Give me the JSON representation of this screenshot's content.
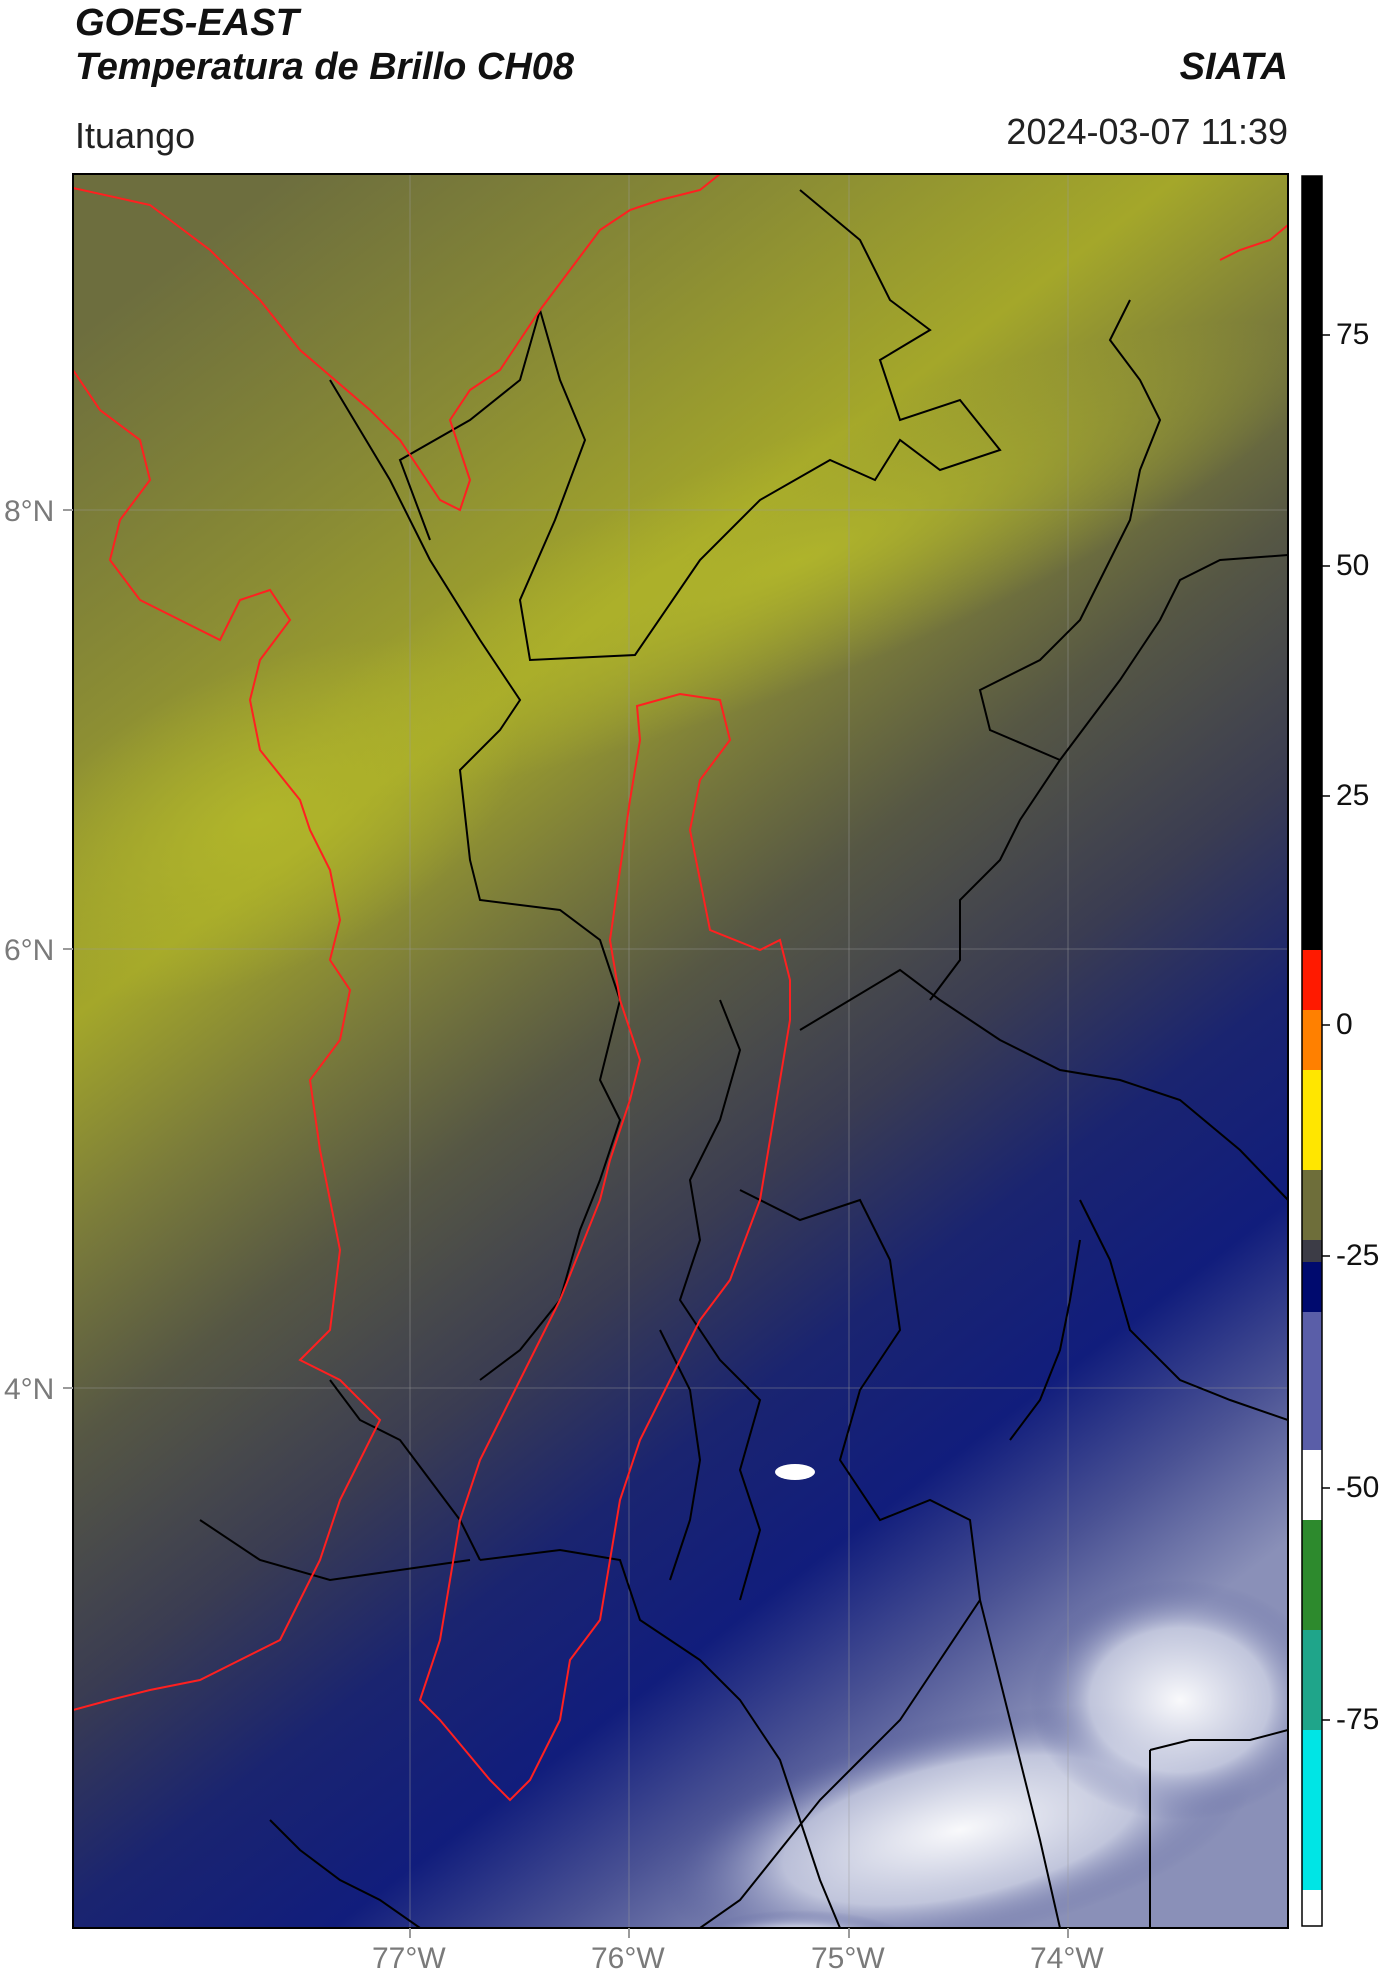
{
  "header": {
    "title_line1": "GOES-EAST",
    "title_line2": "Temperatura de Brillo CH08",
    "agency": "SIATA",
    "region": "Ituango",
    "datetime": "2024-03-07 11:39"
  },
  "axes": {
    "lat_ticks": [
      "8°N",
      "6°N",
      "4°N"
    ],
    "lon_ticks": [
      "77°W",
      "76°W",
      "75°W",
      "74°W"
    ]
  },
  "colorbar": {
    "ticks": [
      "75",
      "50",
      "25",
      "0",
      "-25",
      "-50",
      "-75"
    ],
    "colors": [
      "#ffffff",
      "#00e5e5",
      "#1fa58a",
      "#2d8a2d",
      "#ffffff",
      "#3a3d8c",
      "#000a6e",
      "#3c3c46",
      "#6e6e3a",
      "#ffff00",
      "#ff7f00",
      "#ff0000",
      "#000000"
    ]
  },
  "map_colors": {
    "land_border": "#000000",
    "highlight_border": "#ff2020",
    "warm": "#9ea22a",
    "mid": "#6e6e3a",
    "cool": "#3c3d5c",
    "cold": "#10207a",
    "very_cold": "#ffffff"
  }
}
